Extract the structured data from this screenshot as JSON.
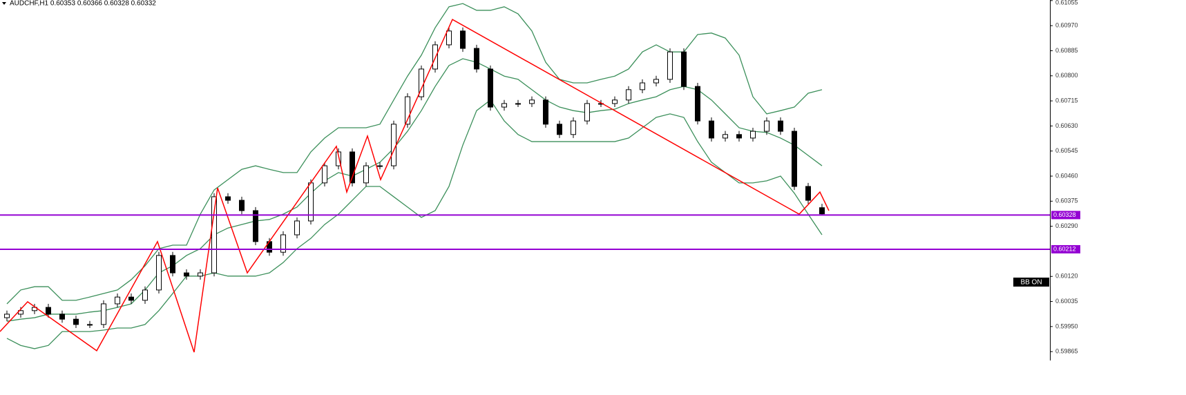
{
  "chart_data": {
    "type": "candlestick",
    "title": "AUDCHF,H1  0.60353 0.60366 0.60328 0.60332",
    "indicator_label": "BB ON",
    "categories": [
      null,
      null,
      null,
      null,
      null,
      null,
      null,
      null,
      null,
      null,
      null,
      null,
      null,
      null,
      null,
      null,
      null,
      null,
      null,
      null,
      null,
      null,
      null,
      null,
      null,
      null,
      null,
      null,
      null,
      null,
      null,
      null,
      null,
      null,
      null,
      null,
      null,
      null,
      null,
      null,
      null,
      null,
      null,
      null,
      null,
      null,
      null,
      null,
      null,
      null,
      null,
      null,
      null,
      null,
      null,
      null,
      null,
      null,
      null,
      null
    ],
    "open": [
      0.5998,
      0.59992,
      0.60004,
      0.60015,
      0.59992,
      0.59975,
      0.59957,
      0.59957,
      0.60027,
      0.6005,
      0.60039,
      0.60074,
      0.60191,
      0.60132,
      0.60121,
      0.60132,
      0.6039,
      0.60378,
      0.60343,
      0.60238,
      0.60202,
      0.60261,
      0.60308,
      0.60437,
      0.60495,
      0.60542,
      0.60437,
      0.60495,
      0.60495,
      0.60636,
      0.60729,
      0.60823,
      0.60905,
      0.60952,
      0.60893,
      0.60823,
      0.60694,
      0.60706,
      0.60706,
      0.60718,
      0.60636,
      0.60601,
      0.60647,
      0.60706,
      0.60706,
      0.60718,
      0.60753,
      0.60776,
      0.60788,
      0.60881,
      0.60764,
      0.60647,
      0.60589,
      0.60601,
      0.60589,
      0.60612,
      0.60647,
      0.60612,
      0.60425,
      0.60353
    ],
    "high": [
      0.60004,
      0.60016,
      0.60027,
      0.60027,
      0.60004,
      0.59987,
      0.59969,
      0.60039,
      0.60062,
      0.60062,
      0.60086,
      0.60203,
      0.60203,
      0.60144,
      0.60144,
      0.60402,
      0.60402,
      0.6039,
      0.60355,
      0.6025,
      0.60273,
      0.6032,
      0.60449,
      0.60507,
      0.60554,
      0.60554,
      0.60507,
      0.60507,
      0.60648,
      0.60741,
      0.60835,
      0.60917,
      0.60964,
      0.60964,
      0.60905,
      0.60835,
      0.60718,
      0.60718,
      0.6073,
      0.6073,
      0.60648,
      0.60659,
      0.60718,
      0.60718,
      0.6073,
      0.60765,
      0.60788,
      0.608,
      0.60893,
      0.60893,
      0.60776,
      0.60659,
      0.60613,
      0.60613,
      0.60624,
      0.60659,
      0.60659,
      0.60624,
      0.60437,
      0.60366
    ],
    "low": [
      0.59968,
      0.5998,
      0.59992,
      0.5998,
      0.59963,
      0.59945,
      0.59945,
      0.59945,
      0.60015,
      0.60027,
      0.60027,
      0.60062,
      0.6012,
      0.60109,
      0.60109,
      0.6012,
      0.60366,
      0.60331,
      0.60226,
      0.6019,
      0.6019,
      0.60249,
      0.60296,
      0.60425,
      0.60483,
      0.60425,
      0.60425,
      0.60483,
      0.60483,
      0.60624,
      0.60717,
      0.60811,
      0.60893,
      0.60881,
      0.60811,
      0.60682,
      0.60682,
      0.60694,
      0.60694,
      0.60624,
      0.60589,
      0.60589,
      0.60635,
      0.60694,
      0.60694,
      0.60706,
      0.60741,
      0.60764,
      0.60776,
      0.60752,
      0.60635,
      0.60577,
      0.60577,
      0.60577,
      0.60577,
      0.606,
      0.606,
      0.60413,
      0.60366,
      0.60328
    ],
    "close": [
      0.59992,
      0.60004,
      0.60015,
      0.59992,
      0.59975,
      0.59957,
      0.59957,
      0.60027,
      0.6005,
      0.60039,
      0.60074,
      0.60191,
      0.60132,
      0.60121,
      0.60132,
      0.6039,
      0.60378,
      0.60343,
      0.60238,
      0.60202,
      0.60261,
      0.60308,
      0.60437,
      0.60495,
      0.60542,
      0.60437,
      0.60495,
      0.60495,
      0.60636,
      0.60729,
      0.60823,
      0.60905,
      0.60952,
      0.60893,
      0.60823,
      0.60694,
      0.60706,
      0.60706,
      0.60718,
      0.60636,
      0.60601,
      0.60647,
      0.60706,
      0.60706,
      0.60718,
      0.60753,
      0.60776,
      0.60788,
      0.60881,
      0.60764,
      0.60647,
      0.60589,
      0.60601,
      0.60589,
      0.60612,
      0.60647,
      0.60612,
      0.60425,
      0.60378,
      0.60332
    ],
    "up_color": "#ffffff",
    "down_color": "#000000",
    "bands": [
      {
        "color": "#3b8f5a",
        "values": [
          0.60027,
          0.60074,
          0.60085,
          0.60085,
          0.60039,
          0.60039,
          0.6005,
          0.60062,
          0.60074,
          0.60109,
          0.60156,
          0.60214,
          0.60226,
          0.60226,
          0.60331,
          0.60413,
          0.60448,
          0.60483,
          0.60495,
          0.60483,
          0.60472,
          0.60472,
          0.60542,
          0.60589,
          0.60624,
          0.60624,
          0.60624,
          0.60636,
          0.60718,
          0.60799,
          0.6087,
          0.60963,
          0.61034,
          0.61045,
          0.61022,
          0.61022,
          0.61034,
          0.6101,
          0.60952,
          0.60846,
          0.60788,
          0.60776,
          0.60776,
          0.60788,
          0.60799,
          0.60823,
          0.60881,
          0.60905,
          0.60881,
          0.60881,
          0.6094,
          0.60945,
          0.60928,
          0.6087,
          0.60729,
          0.60671,
          0.60682,
          0.60694,
          0.60741,
          0.60753
        ]
      },
      {
        "color": "#3b8f5a",
        "values": [
          0.59968,
          0.59975,
          0.5998,
          0.59992,
          0.59992,
          0.59992,
          0.59999,
          0.60004,
          0.60015,
          0.60027,
          0.60074,
          0.60132,
          0.60156,
          0.60191,
          0.60214,
          0.60261,
          0.60284,
          0.60296,
          0.60308,
          0.60313,
          0.60331,
          0.60355,
          0.60402,
          0.60444,
          0.60472,
          0.6046,
          0.60483,
          0.60507,
          0.60554,
          0.60612,
          0.60682,
          0.60764,
          0.60835,
          0.60858,
          0.60846,
          0.60823,
          0.60799,
          0.60788,
          0.60753,
          0.60718,
          0.60694,
          0.60682,
          0.60675,
          0.60682,
          0.60687,
          0.60706,
          0.60718,
          0.60729,
          0.60753,
          0.60764,
          0.60753,
          0.60718,
          0.60671,
          0.60624,
          0.60612,
          0.60608,
          0.60589,
          0.60565,
          0.6053,
          0.60495
        ]
      },
      {
        "color": "#3b8f5a",
        "values": [
          0.5991,
          0.59886,
          0.59875,
          0.59886,
          0.59933,
          0.59933,
          0.59933,
          0.59938,
          0.59945,
          0.59945,
          0.59957,
          0.60004,
          0.60062,
          0.60121,
          0.60121,
          0.60132,
          0.60121,
          0.60121,
          0.60121,
          0.60132,
          0.60167,
          0.60214,
          0.60249,
          0.60296,
          0.60331,
          0.60378,
          0.60425,
          0.60425,
          0.6039,
          0.60355,
          0.6032,
          0.60343,
          0.60425,
          0.60565,
          0.60682,
          0.60718,
          0.60647,
          0.60601,
          0.60577,
          0.60577,
          0.60577,
          0.60577,
          0.60577,
          0.60577,
          0.60577,
          0.60589,
          0.60624,
          0.60659,
          0.60671,
          0.60659,
          0.60577,
          0.60507,
          0.60472,
          0.60437,
          0.60437,
          0.60444,
          0.6046,
          0.60402,
          0.60331,
          0.60261
        ]
      }
    ],
    "zigzag": {
      "color": "#ff0000",
      "x": [
        -0.5,
        1.5,
        6.5,
        10.9,
        13.55,
        15.25,
        17.4,
        23.85,
        24.6,
        26.1,
        27.05,
        32.25,
        57.35,
        58.85,
        59.5
      ],
      "values": [
        0.59933,
        0.60034,
        0.59868,
        0.60238,
        0.59863,
        0.6042,
        0.60132,
        0.60561,
        0.60406,
        0.60596,
        0.60448,
        0.60991,
        0.60331,
        0.60406,
        0.60343
      ]
    },
    "hline_color": "#9400d3",
    "hlines": [
      {
        "value": 0.60328,
        "label": "0.60328"
      },
      {
        "value": 0.60212,
        "label": "0.60212"
      }
    ],
    "xlim": [
      -0.5,
      75.5
    ],
    "ylim": [
      0.59835,
      0.61057
    ],
    "yticks": [
      {
        "value": 0.61055,
        "label": "0.61055"
      },
      {
        "value": 0.6097,
        "label": "0.60970"
      },
      {
        "value": 0.60885,
        "label": "0.60885"
      },
      {
        "value": 0.608,
        "label": "0.60800"
      },
      {
        "value": 0.60715,
        "label": "0.60715"
      },
      {
        "value": 0.6063,
        "label": "0.60630"
      },
      {
        "value": 0.60545,
        "label": "0.60545"
      },
      {
        "value": 0.6046,
        "label": "0.60460"
      },
      {
        "value": 0.60375,
        "label": "0.60375"
      },
      {
        "value": 0.6029,
        "label": "0.60290"
      },
      {
        "value": 0.6012,
        "label": "0.60120"
      },
      {
        "value": 0.60035,
        "label": "0.60035"
      },
      {
        "value": 0.5995,
        "label": "0.59950"
      },
      {
        "value": 0.59865,
        "label": "0.59865"
      }
    ]
  }
}
